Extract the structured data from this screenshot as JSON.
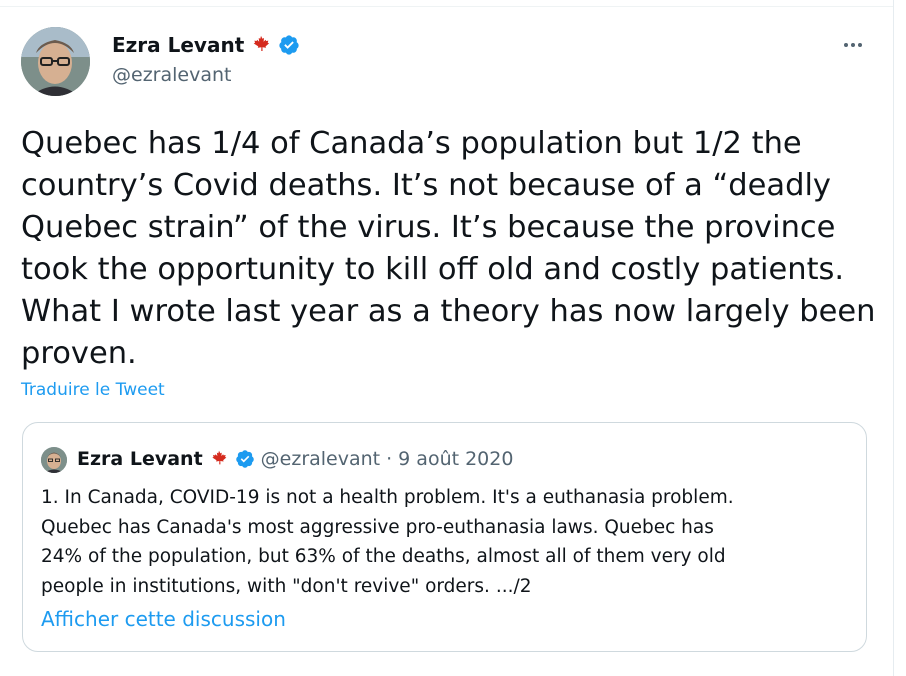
{
  "tweet": {
    "author": {
      "display_name": "Ezra Levant",
      "handle": "@ezralevant",
      "verified": true,
      "flag_icon": "maple-leaf-icon"
    },
    "text": "Quebec has 1/4 of Canada’s population but 1/2 the\ncountry’s Covid deaths. It’s not because of a “deadly\nQuebec strain” of the virus. It’s because the province\ntook the opportunity to kill off old and costly patients.\nWhat I wrote last year as a theory has now largely been\nproven.",
    "translate_label": "Traduire le Tweet",
    "more_icon": "more-horizontal-icon"
  },
  "quoted_tweet": {
    "author": {
      "display_name": "Ezra Levant",
      "handle": "@ezralevant",
      "verified": true
    },
    "separator": "·",
    "date": "9 août 2020",
    "text": "1. In Canada, COVID-19 is not a health problem. It's a euthanasia problem.\nQuebec has Canada's most aggressive pro-euthanasia laws. Quebec has\n24% of the population, but 63% of the deaths, almost all of them very old\npeople in institutions, with \"don't revive\" orders. .../2",
    "show_thread_label": "Afficher cette discussion"
  },
  "colors": {
    "link": "#1d9bf0",
    "verified": "#1d9bf0",
    "flag": "#d52b1e",
    "muted": "#536471",
    "text": "#0f1419"
  }
}
